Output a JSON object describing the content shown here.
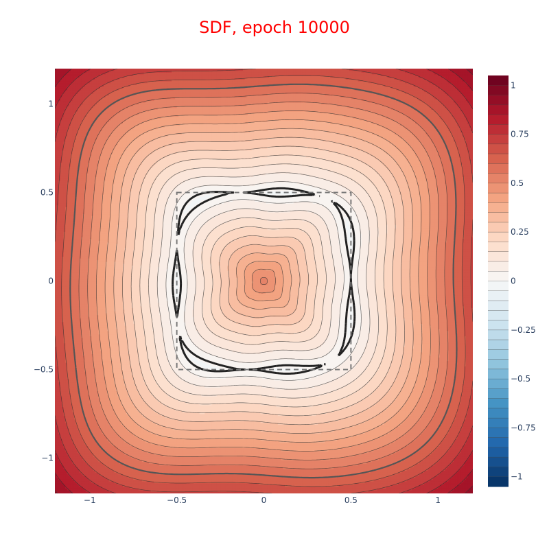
{
  "chart_data": {
    "type": "contour",
    "title": "SDF, epoch 10000",
    "title_color": "#ff0000",
    "xlabel": "",
    "ylabel": "",
    "xlim": [
      -1.2,
      1.2
    ],
    "ylim": [
      -1.2,
      1.2
    ],
    "x_ticks": [
      -1,
      -0.5,
      0,
      0.5,
      1
    ],
    "x_tick_labels": [
      "−1",
      "−0.5",
      "0",
      "0.5",
      "1"
    ],
    "y_ticks": [
      1,
      0.5,
      0,
      -0.5,
      -1
    ],
    "y_tick_labels": [
      "1",
      "0.5",
      "0",
      "−0.5",
      "−1"
    ],
    "colorscale": "RdBu",
    "colorbar": {
      "range": [
        -1.05,
        1.05
      ],
      "ticks": [
        1,
        0.75,
        0.5,
        0.25,
        0,
        -0.25,
        -0.5,
        -0.75,
        -1
      ],
      "tick_labels": [
        "1",
        "0.75",
        "0.5",
        "0.25",
        "0",
        "−0.25",
        "−0.5",
        "−0.75",
        "−1"
      ]
    },
    "contour_step": 0.05,
    "value_range_shown": [
      -0.02,
      1.05
    ],
    "zero_level_contour_value": 0.0,
    "highlight_contour_value": 0.6,
    "true_shape": {
      "type": "square",
      "x": [
        -0.5,
        0.5
      ],
      "y": [
        -0.5,
        0.5
      ],
      "style": "dashed"
    }
  }
}
